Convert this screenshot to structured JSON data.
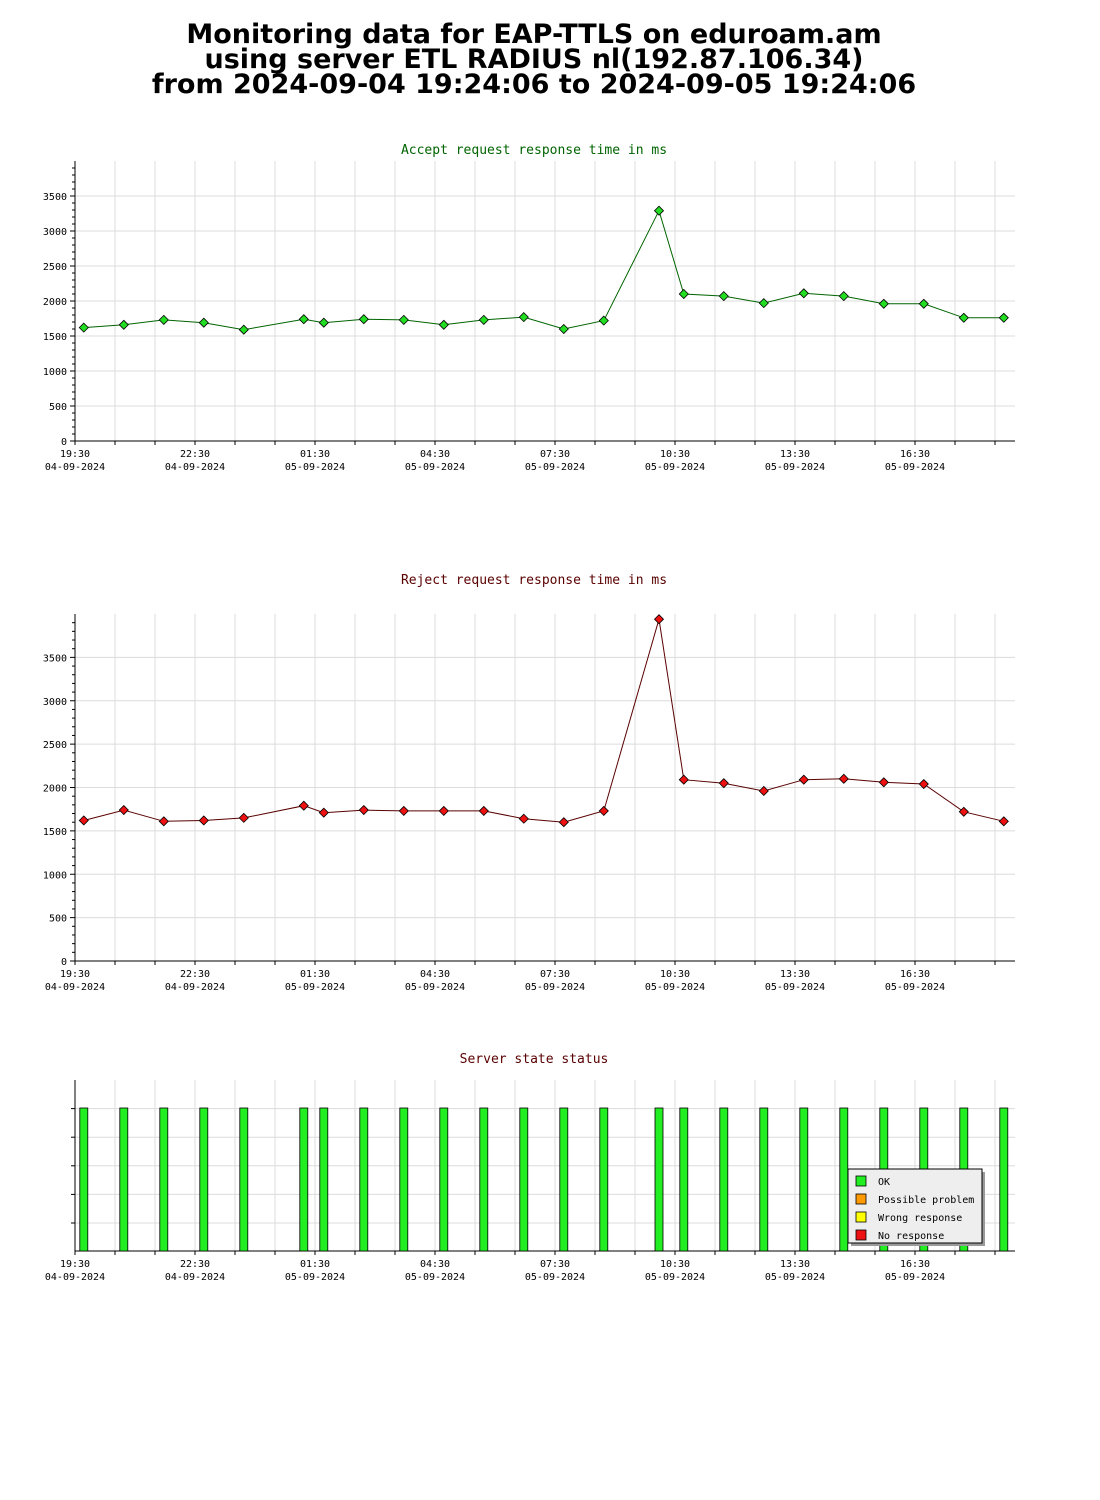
{
  "header": {
    "line1": "Monitoring data for EAP-TTLS on eduroam.am",
    "line2": "using server ETL RADIUS nl(192.87.106.34)",
    "line3": "from 2024-09-04 19:24:06 to 2024-09-05 19:24:06"
  },
  "time_labels": [
    {
      "t": 0,
      "time": "19:30",
      "date": "04-09-2024"
    },
    {
      "t": 3,
      "time": "22:30",
      "date": "04-09-2024"
    },
    {
      "t": 6,
      "time": "01:30",
      "date": "05-09-2024"
    },
    {
      "t": 9,
      "time": "04:30",
      "date": "05-09-2024"
    },
    {
      "t": 12,
      "time": "07:30",
      "date": "05-09-2024"
    },
    {
      "t": 15,
      "time": "10:30",
      "date": "05-09-2024"
    },
    {
      "t": 18,
      "time": "13:30",
      "date": "05-09-2024"
    },
    {
      "t": 21,
      "time": "16:30",
      "date": "05-09-2024"
    }
  ],
  "chart_data": [
    {
      "type": "line",
      "title": "Accept request response time in ms",
      "title_color": "#006400",
      "point_color": "#22dd22",
      "line_color": "#006400",
      "x_unit": "hours since 19:30 on 04-09-2024",
      "ylim": [
        0,
        4000
      ],
      "y_ticks": [
        0,
        500,
        1000,
        1500,
        2000,
        2500,
        3000,
        3500
      ],
      "grid": true,
      "x": [
        0.22,
        1.22,
        2.22,
        3.22,
        4.22,
        5.72,
        6.22,
        7.22,
        8.22,
        9.22,
        10.22,
        11.22,
        12.22,
        13.22,
        14.6,
        15.22,
        16.22,
        17.22,
        18.22,
        19.22,
        20.22,
        21.22,
        22.22,
        23.22
      ],
      "values": [
        1620,
        1660,
        1730,
        1690,
        1590,
        1740,
        1690,
        1740,
        1730,
        1660,
        1730,
        1770,
        1600,
        1720,
        3290,
        2100,
        2070,
        1970,
        2110,
        2070,
        1960,
        1960,
        1760,
        1760
      ]
    },
    {
      "type": "line",
      "title": "Reject request response time in ms",
      "title_color": "#5a0000",
      "point_color": "#ee1111",
      "line_color": "#5a0000",
      "x_unit": "hours since 19:30 on 04-09-2024",
      "ylim": [
        0,
        4000
      ],
      "y_ticks": [
        0,
        500,
        1000,
        1500,
        2000,
        2500,
        3000,
        3500
      ],
      "grid": true,
      "x": [
        0.22,
        1.22,
        2.22,
        3.22,
        4.22,
        5.72,
        6.22,
        7.22,
        8.22,
        9.22,
        10.22,
        11.22,
        12.22,
        13.22,
        14.6,
        15.22,
        16.22,
        17.22,
        18.22,
        19.22,
        20.22,
        21.22,
        22.22,
        23.22
      ],
      "values": [
        1620,
        1740,
        1610,
        1620,
        1650,
        1790,
        1710,
        1740,
        1730,
        1730,
        1730,
        1640,
        1600,
        1730,
        3940,
        2090,
        2050,
        1960,
        2090,
        2100,
        2060,
        2040,
        1720,
        1610
      ]
    },
    {
      "type": "bar",
      "title": "Server state status",
      "title_color": "#5a0000",
      "x_unit": "hours since 19:30 on 04-09-2024",
      "x": [
        0.22,
        1.22,
        2.22,
        3.22,
        4.22,
        5.72,
        6.22,
        7.22,
        8.22,
        9.22,
        10.22,
        11.22,
        12.22,
        13.22,
        14.6,
        15.22,
        16.22,
        17.22,
        18.22,
        19.22,
        20.22,
        21.22,
        22.22,
        23.22
      ],
      "status": [
        "OK",
        "OK",
        "OK",
        "OK",
        "OK",
        "OK",
        "OK",
        "OK",
        "OK",
        "OK",
        "OK",
        "OK",
        "OK",
        "OK",
        "OK",
        "OK",
        "OK",
        "OK",
        "OK",
        "OK",
        "OK",
        "OK",
        "OK",
        "OK"
      ],
      "legend": [
        {
          "label": "OK",
          "color": "#22ee22"
        },
        {
          "label": "Possible problem",
          "color": "#ff9900"
        },
        {
          "label": "Wrong response",
          "color": "#ffff00"
        },
        {
          "label": "No response",
          "color": "#ee1111"
        }
      ],
      "legend_position": "bottom-right"
    }
  ]
}
